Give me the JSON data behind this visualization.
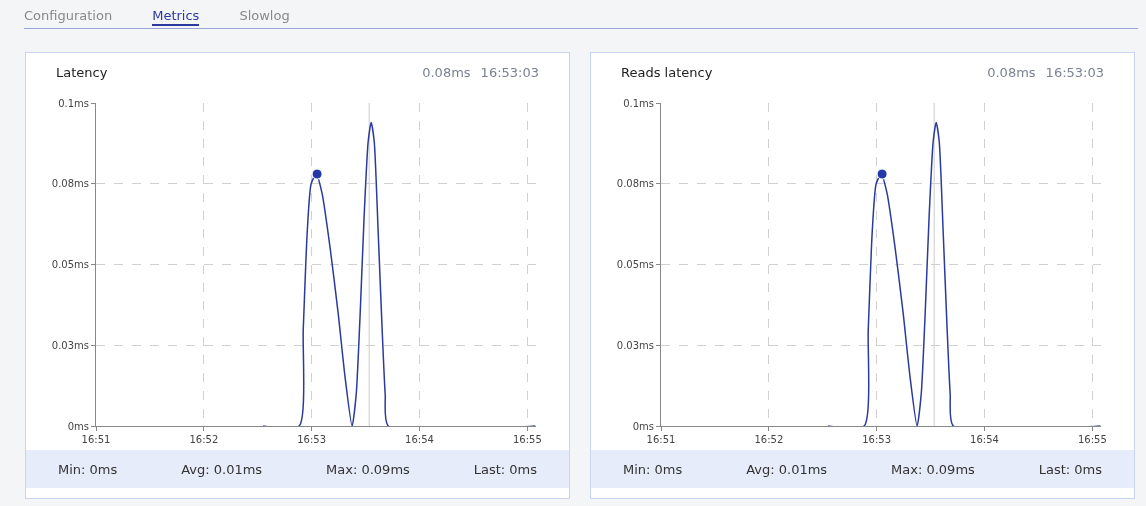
{
  "chart_data": [
    {
      "type": "line",
      "title": "Latency",
      "xlim": [
        16.85,
        16.918
      ],
      "ylim": [
        0,
        0.1
      ],
      "xticks": [
        {
          "value": 16.85,
          "label": "16:51"
        },
        {
          "value": 16.86667,
          "label": "16:52"
        },
        {
          "value": 16.88333,
          "label": "16:53"
        },
        {
          "value": 16.9,
          "label": "16:54"
        },
        {
          "value": 16.91667,
          "label": "16:55"
        }
      ],
      "yticks": [
        {
          "value": 0,
          "label": "0ms"
        },
        {
          "value": 0.025,
          "label": "0.03ms"
        },
        {
          "value": 0.05,
          "label": "0.05ms"
        },
        {
          "value": 0.075,
          "label": "0.08ms"
        },
        {
          "value": 0.1,
          "label": "0.1ms"
        }
      ],
      "grid": true,
      "marker": "none",
      "line_style": "solid",
      "series": [
        {
          "color": "#2b3a9e",
          "x": [
            16.87583,
            16.88139,
            16.88203,
            16.88264,
            16.88325,
            16.88403,
            16.88494,
            16.88619,
            16.88742,
            16.8885,
            16.88958,
            16.89022,
            16.89083,
            16.89144,
            16.89206,
            16.89253,
            16.893,
            16.89361,
            16.89422,
            16.89469,
            16.89517,
            16.91789
          ],
          "values": [
            0,
            0,
            0.03,
            0.06,
            0.075,
            0.078,
            0.072,
            0.055,
            0.035,
            0.015,
            0,
            0.01,
            0.035,
            0.065,
            0.088,
            0.094,
            0.088,
            0.06,
            0.03,
            0.01,
            0,
            0
          ]
        },
        {
          "type": "scatter",
          "marker": "circle",
          "color": "#2438a8",
          "x": [
            16.88417
          ],
          "values": [
            0.078
          ]
        }
      ],
      "ref_lines": [
        {
          "axis": "x",
          "value": 16.89222,
          "color": "#cccccc"
        }
      ],
      "annotations": [
        "Configuration",
        "Metrics",
        "Slowlog",
        "0.08ms",
        "16:53:03",
        "Min: 0ms",
        "Avg: 0.01ms",
        "Max: 0.09ms",
        "Last: 0ms"
      ]
    },
    {
      "type": "line",
      "title": "Reads latency",
      "xlim": [
        16.85,
        16.918
      ],
      "ylim": [
        0,
        0.1
      ],
      "xticks": [
        {
          "value": 16.85,
          "label": "16:51"
        },
        {
          "value": 16.86667,
          "label": "16:52"
        },
        {
          "value": 16.88333,
          "label": "16:53"
        },
        {
          "value": 16.9,
          "label": "16:54"
        },
        {
          "value": 16.91667,
          "label": "16:55"
        }
      ],
      "yticks": [
        {
          "value": 0,
          "label": "0ms"
        },
        {
          "value": 0.025,
          "label": "0.03ms"
        },
        {
          "value": 0.05,
          "label": "0.05ms"
        },
        {
          "value": 0.075,
          "label": "0.08ms"
        },
        {
          "value": 0.1,
          "label": "0.1ms"
        }
      ],
      "grid": true,
      "marker": "none",
      "line_style": "solid",
      "series": [
        {
          "color": "#2b3a9e",
          "x": [
            16.87583,
            16.88139,
            16.88203,
            16.88264,
            16.88325,
            16.88403,
            16.88494,
            16.88619,
            16.88742,
            16.8885,
            16.88958,
            16.89022,
            16.89083,
            16.89144,
            16.89206,
            16.89253,
            16.893,
            16.89361,
            16.89422,
            16.89469,
            16.89517,
            16.91789
          ],
          "values": [
            0,
            0,
            0.03,
            0.06,
            0.075,
            0.078,
            0.072,
            0.055,
            0.035,
            0.015,
            0,
            0.01,
            0.035,
            0.065,
            0.088,
            0.094,
            0.088,
            0.06,
            0.03,
            0.01,
            0,
            0
          ]
        },
        {
          "type": "scatter",
          "marker": "circle",
          "color": "#2438a8",
          "x": [
            16.88417
          ],
          "values": [
            0.078
          ]
        }
      ],
      "ref_lines": [
        {
          "axis": "x",
          "value": 16.89222,
          "color": "#cccccc"
        }
      ],
      "annotations": [
        "0.08ms",
        "16:53:03",
        "Min: 0ms",
        "Avg: 0.01ms",
        "Max: 0.09ms",
        "Last: 0ms"
      ]
    }
  ]
}
